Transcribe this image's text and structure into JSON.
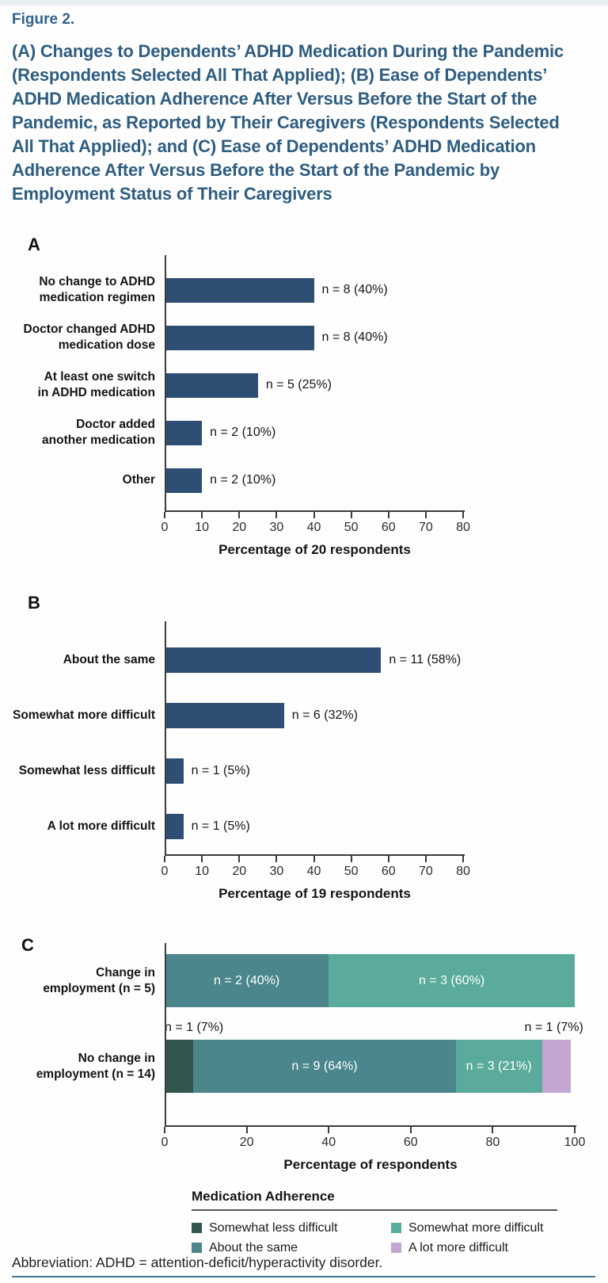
{
  "page": {
    "figure_label": "Figure 2.",
    "title": "(A) Changes to Dependents’ ADHD Medication During the Pandemic (Respondents Selected All That Applied); (B) Ease of Dependents’ ADHD Medication Adherence After Versus Before the Start of the Pandemic, as Reported by Their Caregivers (Respondents Selected All That Applied); and (C) Ease of Dependents’ ADHD Medication Adherence After Versus Before the Start of the Pandemic by Employment Status of Their Caregivers",
    "footnote": "Abbreviation: ADHD = attention-deficit/hyperactivity disorder.",
    "colors": {
      "figure_label_blue": "#30618c",
      "title_blue": "#2e5d80",
      "bar_navy": "#2f4e73",
      "axis": "#3b3b3b",
      "bottom_rule_blue": "#4a7396",
      "series": {
        "Somewhat less difficult": "#33574f",
        "About the same": "#4b868c",
        "Somewhat more difficult": "#5aab9c",
        "A lot more difficult": "#c4a6d3"
      }
    }
  },
  "chart_data": [
    {
      "panel": "A",
      "type": "bar",
      "categories": [
        [
          "No change to ADHD",
          "medication regimen"
        ],
        [
          "Doctor changed ADHD",
          "medication dose"
        ],
        [
          "At least one switch",
          "in ADHD medication"
        ],
        [
          "Doctor added",
          "another medication"
        ],
        [
          "Other"
        ]
      ],
      "values": [
        40,
        40,
        25,
        10,
        10
      ],
      "bar_labels": [
        "n = 8 (40%)",
        "n = 8 (40%)",
        "n = 5 (25%)",
        "n = 2 (10%)",
        "n = 2 (10%)"
      ],
      "xlim": [
        0,
        80
      ],
      "xticks": [
        0,
        10,
        20,
        30,
        40,
        50,
        60,
        70,
        80
      ],
      "xlabel": "Percentage of 20 respondents",
      "grid": false,
      "orientation": "horizontal"
    },
    {
      "panel": "B",
      "type": "bar",
      "categories": [
        [
          "About the same"
        ],
        [
          "Somewhat more difficult"
        ],
        [
          "Somewhat less difficult"
        ],
        [
          "A lot more difficult"
        ]
      ],
      "values": [
        58,
        32,
        5,
        5
      ],
      "bar_labels": [
        "n = 11 (58%)",
        "n = 6 (32%)",
        "n = 1 (5%)",
        "n = 1 (5%)"
      ],
      "xlim": [
        0,
        80
      ],
      "xticks": [
        0,
        10,
        20,
        30,
        40,
        50,
        60,
        70,
        80
      ],
      "xlabel": "Percentage of 19 respondents",
      "grid": false,
      "orientation": "horizontal"
    },
    {
      "panel": "C",
      "type": "stacked_bar",
      "xlim": [
        0,
        100
      ],
      "xticks": [
        0,
        20,
        40,
        60,
        80,
        100
      ],
      "xlabel": "Percentage of respondents",
      "grid": false,
      "orientation": "horizontal",
      "rows": [
        {
          "category": [
            "Change in",
            "employment (n = 5)"
          ],
          "segments": [
            {
              "series": "About the same",
              "value": 40,
              "label": "n = 2 (40%)",
              "label_placement": "inside"
            },
            {
              "series": "Somewhat more difficult",
              "value": 60,
              "label": "n = 3 (60%)",
              "label_placement": "inside"
            }
          ]
        },
        {
          "category": [
            "No change in",
            "employment (n = 14)"
          ],
          "segments": [
            {
              "series": "Somewhat less difficult",
              "value": 7,
              "label": "n = 1 (7%)",
              "label_placement": "above-left"
            },
            {
              "series": "About the same",
              "value": 64,
              "label": "n = 9 (64%)",
              "label_placement": "inside"
            },
            {
              "series": "Somewhat more difficult",
              "value": 21,
              "label": "n = 3 (21%)",
              "label_placement": "inside"
            },
            {
              "series": "A lot more difficult",
              "value": 7,
              "label": "n = 1 (7%)",
              "label_placement": "above-right"
            }
          ]
        }
      ],
      "legend": {
        "title": "Medication Adherence",
        "position": "below",
        "items": [
          "Somewhat less difficult",
          "About the same",
          "Somewhat more difficult",
          "A lot more difficult"
        ]
      }
    }
  ]
}
